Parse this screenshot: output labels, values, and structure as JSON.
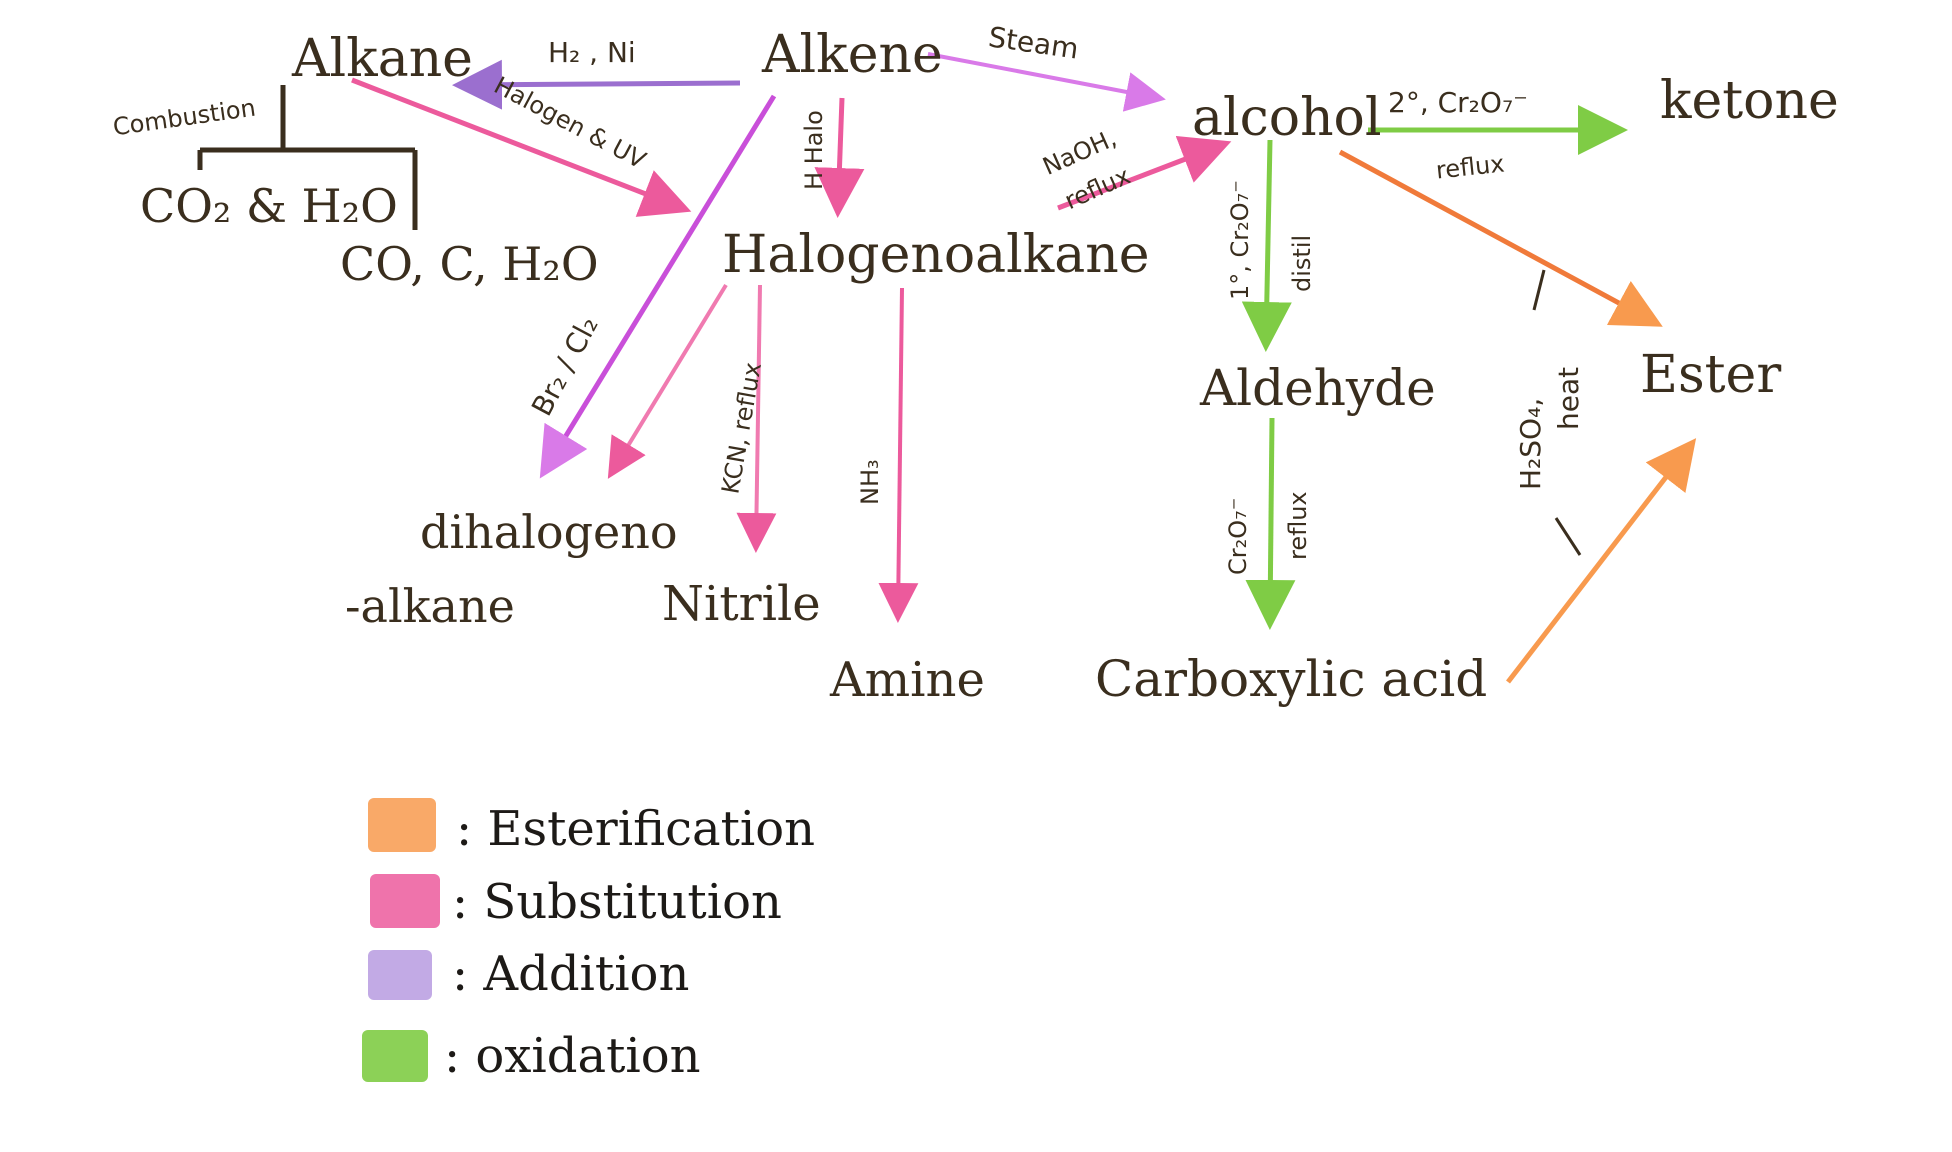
{
  "colors": {
    "esterification": "#f89a4e",
    "substitution": "#ec5a9c",
    "addition": "#9b6fcf",
    "oxidation": "#7fcc45",
    "alkene_to_alcohol": "#d97ae8",
    "ink": "#3a2e1e"
  },
  "nodes": {
    "alkane": "Alkane",
    "alkene": "Alkene",
    "alcohol": "alcohol",
    "ketone": "ketone",
    "halogenoalkane": "Halogenoalkane",
    "co2_h2o": "CO₂ & H₂O",
    "co_c_h2o": "CO, C, H₂O",
    "dihalogeno_line1": "dihalogeno",
    "dihalogeno_line2": "-alkane",
    "nitrile": "Nitrile",
    "amine": "Amine",
    "aldehyde": "Aldehyde",
    "carboxylic_acid": "Carboxylic acid",
    "ester": "Ester"
  },
  "conditions": {
    "h2_ni": "H₂ , Ni",
    "steam": "Steam",
    "combustion": "Combustion",
    "halogen_uv": "Halogen & UV",
    "h_halo": "H Halo",
    "naoh_reflux_1": "NaOH,",
    "naoh_reflux_2": "reflux",
    "secondary_cr2o7": "2°, Cr₂O₇⁻",
    "reflux_ketone": "reflux",
    "primary_cr2o7": "1°, Cr₂O₇⁻",
    "distil": "distil",
    "br2_cl2": "Br₂ / Cl₂",
    "kcn_reflux": "KCN, reflux",
    "nh3": "NH₃",
    "cr2o7": "Cr₂O₇⁻",
    "reflux_acid": "reflux",
    "h2so4": "H₂SO₄,",
    "heat": "heat"
  },
  "legend": [
    {
      "label": ": Esterification",
      "color_key": "esterification"
    },
    {
      "label": ": Substitution",
      "color_key": "substitution"
    },
    {
      "label": ": Addition",
      "color_key": "addition"
    },
    {
      "label": ": oxidation",
      "color_key": "oxidation"
    }
  ]
}
